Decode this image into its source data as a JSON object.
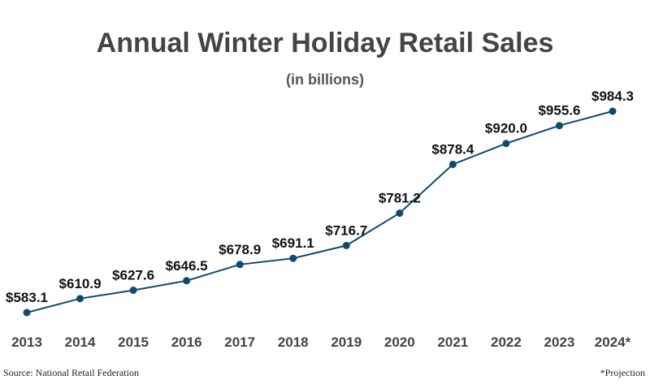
{
  "chart_data": {
    "type": "line",
    "title": "Annual Winter Holiday Retail Sales",
    "subtitle": "(in billions)",
    "categories": [
      "2013",
      "2014",
      "2015",
      "2016",
      "2017",
      "2018",
      "2019",
      "2020",
      "2021",
      "2022",
      "2023",
      "2024*"
    ],
    "series": [
      {
        "values": [
          583.1,
          610.9,
          627.6,
          646.5,
          678.9,
          691.1,
          716.7,
          781.2,
          878.4,
          920.0,
          955.6,
          984.3
        ],
        "labels": [
          "$583.1",
          "$610.9",
          "$627.6",
          "$646.5",
          "$678.9",
          "$691.1",
          "$716.7",
          "$781.2",
          "$878.4",
          "$920.0",
          "$955.6",
          "$984.3"
        ],
        "color": "#0e4a6e"
      }
    ],
    "grid": false
  },
  "footer": {
    "source": "Source: National Retail Federation",
    "note": "*Projection"
  }
}
